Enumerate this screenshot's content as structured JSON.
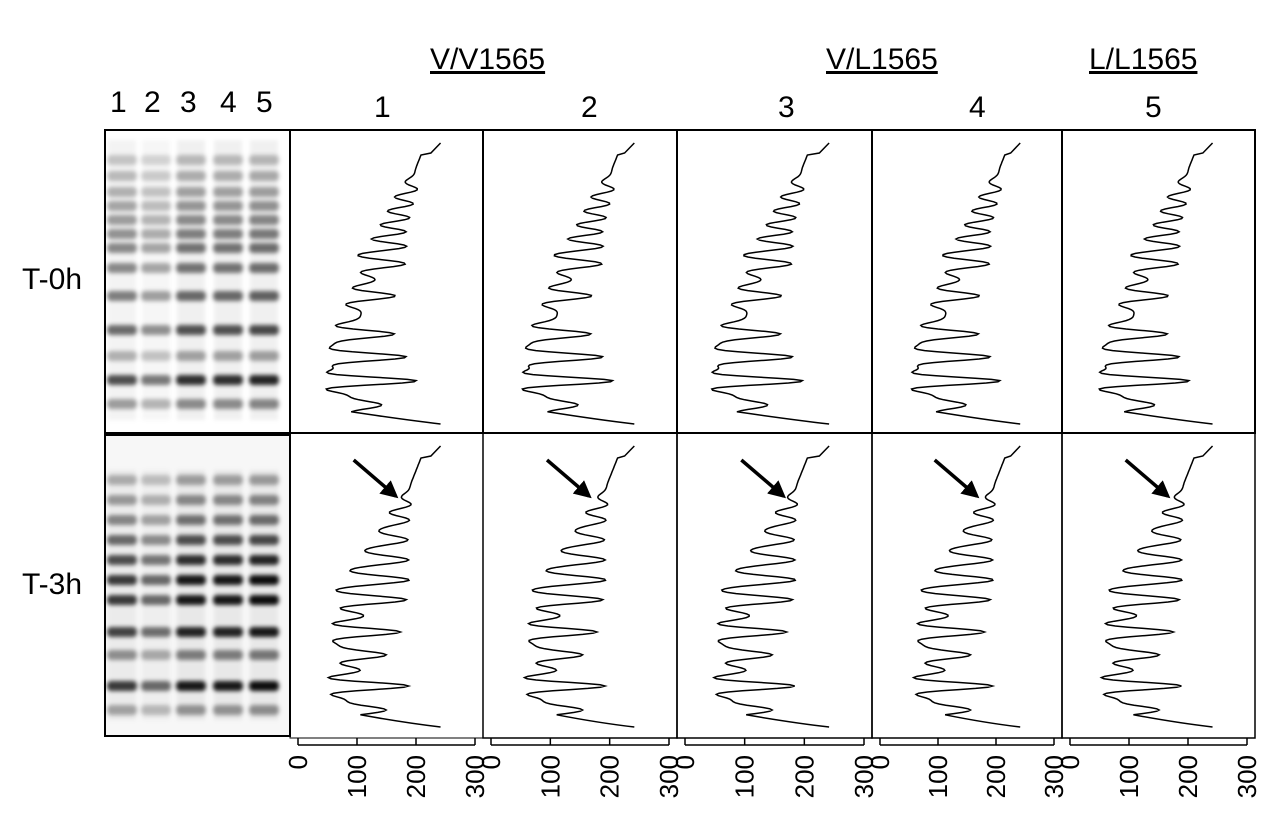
{
  "figure": {
    "genotype_headers": [
      "V/V1565",
      "V/L1565",
      "L/L1565"
    ],
    "gel_lane_numbers": [
      "1",
      "2",
      "3",
      "4",
      "5"
    ],
    "trace_lane_numbers": [
      "1",
      "2",
      "3",
      "4",
      "5"
    ],
    "time_points": [
      "T-0h",
      "T-3h"
    ],
    "x_axis_ticks": [
      "0",
      "100",
      "200",
      "300"
    ]
  },
  "colors": {
    "ink": "#000000",
    "background": "#ffffff"
  },
  "chart_data": {
    "type": "line",
    "x_range": [
      0,
      300
    ],
    "x_tick_labels": [
      "0",
      "100",
      "200",
      "300"
    ],
    "orientation": "vertical-profile",
    "panels": [
      {
        "time": "T-0h",
        "lane": "1"
      },
      {
        "time": "T-0h",
        "lane": "2"
      },
      {
        "time": "T-0h",
        "lane": "3"
      },
      {
        "time": "T-0h",
        "lane": "4"
      },
      {
        "time": "T-0h",
        "lane": "5"
      },
      {
        "time": "T-3h",
        "lane": "1"
      },
      {
        "time": "T-3h",
        "lane": "2"
      },
      {
        "time": "T-3h",
        "lane": "3"
      },
      {
        "time": "T-3h",
        "lane": "4"
      },
      {
        "time": "T-3h",
        "lane": "5"
      }
    ]
  }
}
